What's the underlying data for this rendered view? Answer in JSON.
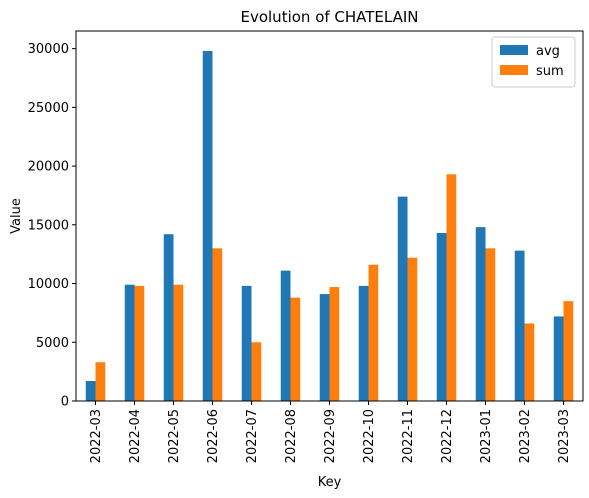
{
  "chart_data": {
    "type": "bar",
    "title": "Evolution of CHATELAIN",
    "xlabel": "Key",
    "ylabel": "Value",
    "ylim": [
      0,
      31500
    ],
    "yticks": [
      0,
      5000,
      10000,
      15000,
      20000,
      25000,
      30000
    ],
    "categories": [
      "2022-03",
      "2022-04",
      "2022-05",
      "2022-06",
      "2022-07",
      "2022-08",
      "2022-09",
      "2022-10",
      "2022-11",
      "2022-12",
      "2023-01",
      "2023-02",
      "2023-03"
    ],
    "series": [
      {
        "name": "avg",
        "color": "#1f77b4",
        "values": [
          1700,
          9900,
          14200,
          29800,
          9800,
          11100,
          9100,
          9800,
          17400,
          14300,
          14800,
          12800,
          7200
        ]
      },
      {
        "name": "sum",
        "color": "#ff7f0e",
        "values": [
          3300,
          9800,
          9900,
          13000,
          5000,
          8800,
          9700,
          11600,
          12200,
          19300,
          13000,
          6600,
          8500
        ]
      }
    ],
    "legend_position": "top-right",
    "grid": false
  }
}
